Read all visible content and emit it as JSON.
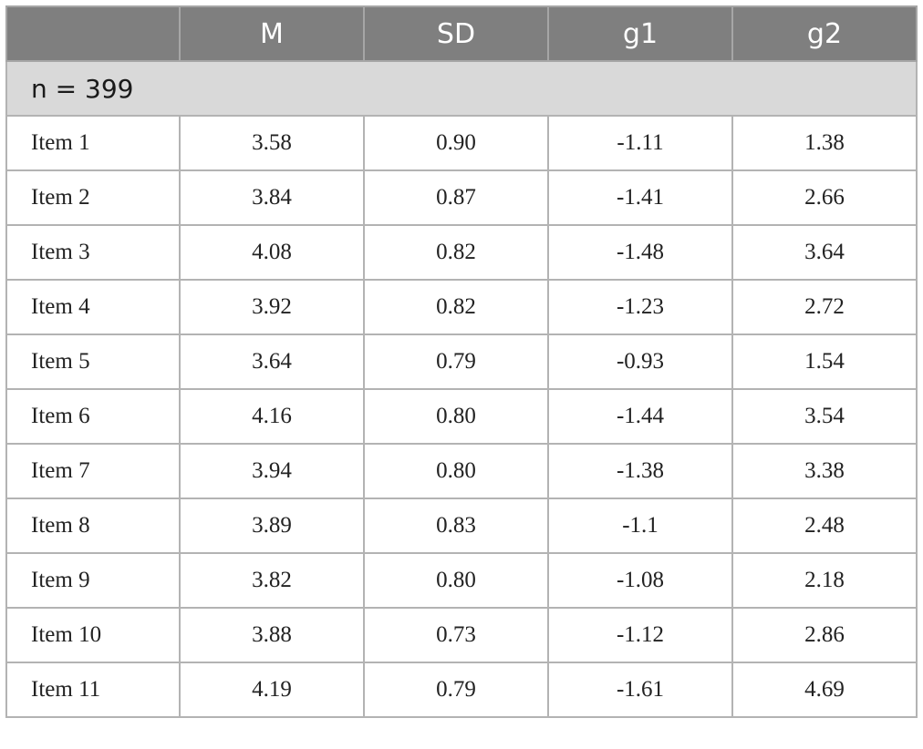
{
  "table": {
    "headers": [
      "",
      "M",
      "SD",
      "g1",
      "g2"
    ],
    "group_label": "n = 399",
    "rows": [
      {
        "item": "Item 1",
        "M": "3.58",
        "SD": "0.90",
        "g1": "-1.11",
        "g2": "1.38"
      },
      {
        "item": "Item 2",
        "M": "3.84",
        "SD": "0.87",
        "g1": "-1.41",
        "g2": "2.66"
      },
      {
        "item": "Item 3",
        "M": "4.08",
        "SD": "0.82",
        "g1": "-1.48",
        "g2": "3.64"
      },
      {
        "item": "Item 4",
        "M": "3.92",
        "SD": "0.82",
        "g1": "-1.23",
        "g2": "2.72"
      },
      {
        "item": "Item 5",
        "M": "3.64",
        "SD": "0.79",
        "g1": "-0.93",
        "g2": "1.54"
      },
      {
        "item": "Item 6",
        "M": "4.16",
        "SD": "0.80",
        "g1": "-1.44",
        "g2": "3.54"
      },
      {
        "item": "Item 7",
        "M": "3.94",
        "SD": "0.80",
        "g1": "-1.38",
        "g2": "3.38"
      },
      {
        "item": "Item 8",
        "M": "3.89",
        "SD": "0.83",
        "g1": "-1.1",
        "g2": "2.48"
      },
      {
        "item": "Item 9",
        "M": "3.82",
        "SD": "0.80",
        "g1": "-1.08",
        "g2": "2.18"
      },
      {
        "item": "Item 10",
        "M": "3.88",
        "SD": "0.73",
        "g1": "-1.12",
        "g2": "2.86"
      },
      {
        "item": "Item 11",
        "M": "4.19",
        "SD": "0.79",
        "g1": "-1.61",
        "g2": "4.69"
      }
    ]
  },
  "colors": {
    "header_bg": "#7f7f7f",
    "group_bg": "#d9d9d9",
    "border": "#b3b3b3"
  }
}
